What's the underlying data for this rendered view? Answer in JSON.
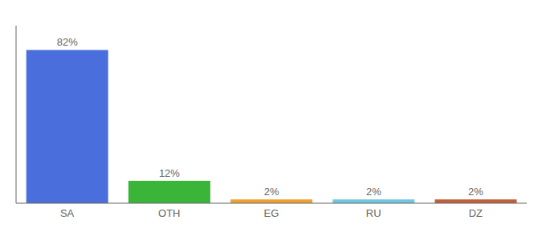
{
  "chart_data": {
    "type": "bar",
    "categories": [
      "SA",
      "OTH",
      "EG",
      "RU",
      "DZ"
    ],
    "values": [
      82,
      12,
      2,
      2,
      2
    ],
    "value_labels": [
      "82%",
      "12%",
      "2%",
      "2%",
      "2%"
    ],
    "data_labels": true,
    "colors": [
      "#4a6edb",
      "#3ab53a",
      "#f0a030",
      "#70c8e0",
      "#c0603a"
    ],
    "ylim": [
      0,
      95
    ],
    "tick_labels": "x"
  }
}
